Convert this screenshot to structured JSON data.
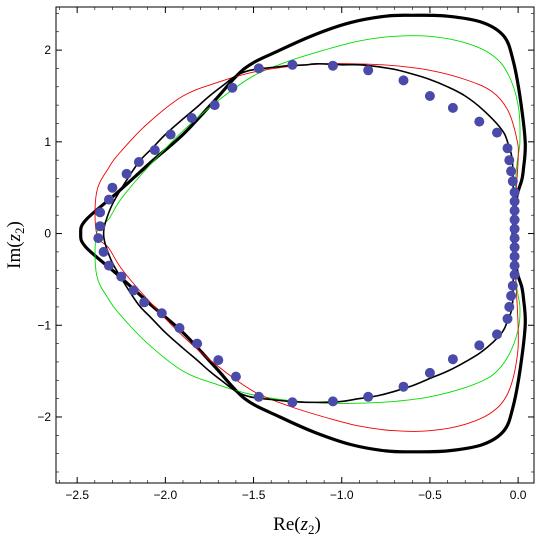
{
  "chart_data": {
    "type": "line",
    "xlabel": {
      "prefix": "Re(",
      "var": "z",
      "sub": "2",
      "suffix": ")"
    },
    "ylabel": {
      "prefix": "Im(",
      "var": "z",
      "sub": "2",
      "suffix": ")"
    },
    "xlim": [
      -2.62,
      0.09
    ],
    "ylim": [
      -2.72,
      2.47
    ],
    "xticks": [
      {
        "value": -2.5,
        "label": "−2.5"
      },
      {
        "value": -2.0,
        "label": "−2.0"
      },
      {
        "value": -1.5,
        "label": "−1.5"
      },
      {
        "value": -1.0,
        "label": "−1.0"
      },
      {
        "value": -0.5,
        "label": "−0.5"
      },
      {
        "value": 0.0,
        "label": "0.0"
      }
    ],
    "yticks": [
      {
        "value": 2,
        "label": "2"
      },
      {
        "value": 1,
        "label": "1"
      },
      {
        "value": 0,
        "label": "0"
      },
      {
        "value": -1,
        "label": "−1"
      },
      {
        "value": -2,
        "label": "−2"
      }
    ],
    "grid": false,
    "legend": "none",
    "series": [
      {
        "color": "#000000",
        "style": "thick",
        "x": [
          -0.03,
          -0.01,
          0.02,
          0.03,
          0.04,
          0.01,
          -0.03,
          -0.08,
          -0.2,
          -0.4,
          -0.6,
          -0.75,
          -0.95,
          -1.15,
          -1.35,
          -1.55,
          -1.72,
          -1.9,
          -2.08,
          -2.27,
          -2.45,
          -2.48,
          -2.45,
          -2.27,
          -2.08,
          -1.9,
          -1.72,
          -1.55,
          -1.35,
          -1.15,
          -0.95,
          -0.75,
          -0.6,
          -0.4,
          -0.2,
          -0.08,
          -0.03,
          0.01,
          0.04,
          0.03,
          0.02,
          -0.01,
          -0.03
        ],
        "y": [
          0.0,
          0.38,
          0.58,
          0.7,
          1.0,
          1.5,
          1.9,
          2.15,
          2.3,
          2.37,
          2.38,
          2.37,
          2.3,
          2.17,
          2.0,
          1.8,
          1.45,
          1.08,
          0.78,
          0.45,
          0.15,
          0.0,
          -0.15,
          -0.45,
          -0.78,
          -1.08,
          -1.45,
          -1.8,
          -2.0,
          -2.17,
          -2.3,
          -2.37,
          -2.38,
          -2.37,
          -2.3,
          -2.15,
          -1.9,
          -1.5,
          -1.0,
          -0.7,
          -0.58,
          -0.38,
          0.0
        ]
      },
      {
        "color": "#00dd00",
        "style": "thin",
        "x": [
          -0.03,
          -0.01,
          0.01,
          0.0,
          -0.06,
          -0.15,
          -0.3,
          -0.5,
          -0.7,
          -0.9,
          -1.1,
          -1.3,
          -1.5,
          -1.7,
          -1.9,
          -2.1,
          -2.25,
          -2.32,
          -2.39,
          -2.39,
          -2.32,
          -2.25,
          -2.1,
          -1.9,
          -1.7,
          -1.5,
          -1.3,
          -1.1,
          -0.9,
          -0.7,
          -0.5,
          -0.3,
          -0.15,
          -0.06,
          0.0,
          0.01,
          -0.01,
          -0.03
        ],
        "y": [
          0.0,
          0.7,
          1.0,
          1.4,
          1.75,
          1.95,
          2.08,
          2.15,
          2.15,
          2.1,
          2.0,
          1.88,
          1.72,
          1.45,
          1.12,
          0.72,
          0.38,
          0.16,
          0.0,
          -0.45,
          -0.72,
          -0.9,
          -1.2,
          -1.5,
          -1.65,
          -1.76,
          -1.82,
          -1.85,
          -1.85,
          -1.83,
          -1.78,
          -1.68,
          -1.55,
          -1.35,
          -1.05,
          -0.8,
          -0.55,
          0.0
        ]
      },
      {
        "color": "#ee0000",
        "style": "thin",
        "x": [
          -0.03,
          0.0,
          -0.01,
          -0.06,
          -0.15,
          -0.3,
          -0.5,
          -0.7,
          -0.9,
          -1.1,
          -1.3,
          -1.5,
          -1.7,
          -1.9,
          -2.1,
          -2.25,
          -2.32,
          -2.39,
          -2.39,
          -2.32,
          -2.25,
          -2.1,
          -1.9,
          -1.7,
          -1.5,
          -1.3,
          -1.1,
          -0.9,
          -0.7,
          -0.5,
          -0.3,
          -0.15,
          -0.06,
          -0.01,
          0.0,
          -0.03
        ],
        "y": [
          0.0,
          0.8,
          1.05,
          1.35,
          1.55,
          1.68,
          1.78,
          1.83,
          1.85,
          1.85,
          1.82,
          1.76,
          1.65,
          1.5,
          1.2,
          0.9,
          0.72,
          0.45,
          0.0,
          -0.16,
          -0.38,
          -0.72,
          -1.12,
          -1.45,
          -1.72,
          -1.88,
          -2.0,
          -2.1,
          -2.15,
          -2.15,
          -2.08,
          -1.95,
          -1.75,
          -1.4,
          -1.0,
          0.0
        ]
      },
      {
        "color": "#000000",
        "style": "medium",
        "x": [
          -0.03,
          -0.03,
          -0.06,
          -0.1,
          -0.2,
          -0.3,
          -0.4,
          -0.5,
          -0.6,
          -0.7,
          -0.8,
          -0.9,
          -1.0,
          -1.1,
          -1.16,
          -1.2,
          -1.3,
          -1.4,
          -1.52,
          -1.6,
          -1.67,
          -1.75,
          -1.82,
          -1.9,
          -2.0,
          -2.08,
          -2.15,
          -2.23,
          -2.3,
          -2.34,
          -2.35,
          -2.34,
          -2.3,
          -2.23,
          -2.15,
          -2.08,
          -2.0,
          -1.9,
          -1.82,
          -1.75,
          -1.67,
          -1.6,
          -1.52,
          -1.4,
          -1.3,
          -1.2,
          -1.1,
          -1.0,
          -0.9,
          -0.8,
          -0.7,
          -0.6,
          -0.5,
          -0.4,
          -0.3,
          -0.2,
          -0.1,
          -0.06,
          -0.03,
          -0.03
        ],
        "y": [
          0.0,
          0.72,
          1.0,
          1.15,
          1.35,
          1.5,
          1.6,
          1.68,
          1.74,
          1.79,
          1.82,
          1.84,
          1.84,
          1.85,
          1.85,
          1.84,
          1.83,
          1.81,
          1.78,
          1.72,
          1.62,
          1.5,
          1.38,
          1.25,
          1.08,
          0.92,
          0.78,
          0.55,
          0.32,
          0.12,
          0.0,
          -0.12,
          -0.32,
          -0.55,
          -0.78,
          -0.92,
          -1.08,
          -1.25,
          -1.38,
          -1.5,
          -1.62,
          -1.72,
          -1.78,
          -1.81,
          -1.83,
          -1.84,
          -1.84,
          -1.83,
          -1.8,
          -1.77,
          -1.72,
          -1.66,
          -1.58,
          -1.5,
          -1.4,
          -1.28,
          -1.1,
          -0.95,
          -0.72,
          0.0
        ]
      }
    ],
    "markers": {
      "color": "#4a4aa8",
      "points": [
        [
          -0.02,
          0.05
        ],
        [
          -0.02,
          0.15
        ],
        [
          -0.02,
          0.25
        ],
        [
          -0.02,
          0.35
        ],
        [
          -0.02,
          0.45
        ],
        [
          -0.03,
          0.57
        ],
        [
          -0.04,
          0.68
        ],
        [
          -0.05,
          0.8
        ],
        [
          -0.06,
          0.93
        ],
        [
          -0.12,
          1.1
        ],
        [
          -0.22,
          1.22
        ],
        [
          -0.37,
          1.37
        ],
        [
          -0.5,
          1.5
        ],
        [
          -0.65,
          1.67
        ],
        [
          -0.85,
          1.78
        ],
        [
          -1.05,
          1.83
        ],
        [
          -1.28,
          1.84
        ],
        [
          -1.47,
          1.8
        ],
        [
          -1.62,
          1.59
        ],
        [
          -1.72,
          1.4
        ],
        [
          -1.85,
          1.26
        ],
        [
          -1.97,
          1.08
        ],
        [
          -2.06,
          0.91
        ],
        [
          -2.15,
          0.78
        ],
        [
          -2.22,
          0.65
        ],
        [
          -2.3,
          0.5
        ],
        [
          -2.32,
          0.37
        ],
        [
          -2.37,
          0.23
        ],
        [
          -2.37,
          0.08
        ],
        [
          -2.38,
          -0.05
        ],
        [
          -2.35,
          -0.2
        ],
        [
          -2.32,
          -0.35
        ],
        [
          -2.25,
          -0.47
        ],
        [
          -2.18,
          -0.62
        ],
        [
          -2.12,
          -0.75
        ],
        [
          -2.02,
          -0.87
        ],
        [
          -1.92,
          -1.03
        ],
        [
          -1.82,
          -1.2
        ],
        [
          -1.7,
          -1.38
        ],
        [
          -1.6,
          -1.56
        ],
        [
          -1.47,
          -1.78
        ],
        [
          -1.28,
          -1.84
        ],
        [
          -1.05,
          -1.83
        ],
        [
          -0.85,
          -1.78
        ],
        [
          -0.65,
          -1.67
        ],
        [
          -0.5,
          -1.52
        ],
        [
          -0.37,
          -1.37
        ],
        [
          -0.22,
          -1.22
        ],
        [
          -0.12,
          -1.1
        ],
        [
          -0.06,
          -0.93
        ],
        [
          -0.05,
          -0.8
        ],
        [
          -0.04,
          -0.68
        ],
        [
          -0.03,
          -0.57
        ],
        [
          -0.02,
          -0.45
        ],
        [
          -0.02,
          -0.35
        ],
        [
          -0.02,
          -0.25
        ],
        [
          -0.02,
          -0.15
        ],
        [
          -0.02,
          -0.05
        ]
      ]
    }
  }
}
